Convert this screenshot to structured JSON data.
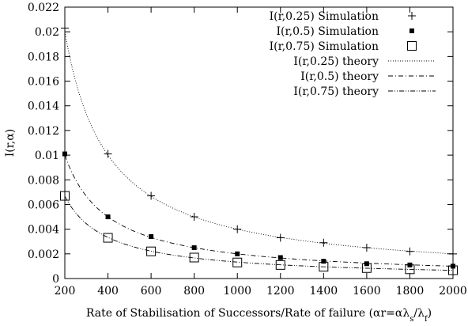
{
  "chart_data": {
    "type": "line",
    "xlabel_main": "Rate of Stabilisation of Successors/Rate of failure (αr=αλ",
    "xlabel_sub1": "s",
    "xlabel_mid": "/λ",
    "xlabel_sub2": "f",
    "xlabel_end": ")",
    "ylabel": "I(r,α)",
    "xlim": [
      200,
      2000
    ],
    "ylim": [
      0,
      0.022
    ],
    "xticks": [
      200,
      400,
      600,
      800,
      1000,
      1200,
      1400,
      1600,
      1800,
      2000
    ],
    "yticks": [
      0,
      0.002,
      0.004,
      0.006,
      0.008,
      0.01,
      0.012,
      0.014,
      0.016,
      0.018,
      0.02,
      0.022
    ],
    "legend_position": "top-right",
    "series": [
      {
        "name": "I(r,0.25) Simulation",
        "kind": "points",
        "marker": "plus",
        "x": [
          200,
          400,
          600,
          800,
          1000,
          1200,
          1400,
          1600,
          1800,
          2000
        ],
        "y": [
          0.0203,
          0.0101,
          0.0067,
          0.005,
          0.004,
          0.0033,
          0.0029,
          0.0025,
          0.0022,
          0.002
        ]
      },
      {
        "name": "I(r,0.5) Simulation",
        "kind": "points",
        "marker": "filled-square",
        "x": [
          200,
          400,
          600,
          800,
          1000,
          1200,
          1400,
          1600,
          1800,
          2000
        ],
        "y": [
          0.0101,
          0.005,
          0.0034,
          0.0025,
          0.002,
          0.0017,
          0.0014,
          0.0012,
          0.0011,
          0.001
        ]
      },
      {
        "name": "I(r,0.75) Simulation",
        "kind": "points",
        "marker": "open-square",
        "x": [
          200,
          400,
          600,
          800,
          1000,
          1200,
          1400,
          1600,
          1800,
          2000
        ],
        "y": [
          0.0067,
          0.0033,
          0.0022,
          0.0017,
          0.0013,
          0.0011,
          0.00095,
          0.00085,
          0.00075,
          0.00067
        ]
      },
      {
        "name": "I(r,0.25) theory",
        "kind": "curve",
        "dash": "dotted",
        "coefficient": 4.0,
        "x_start": 200,
        "x_end": 2000
      },
      {
        "name": "I(r,0.5) theory",
        "kind": "curve",
        "dash": "dash-dot",
        "coefficient": 2.0,
        "x_start": 200,
        "x_end": 2000
      },
      {
        "name": "I(r,0.75) theory",
        "kind": "curve",
        "dash": "dash-dot-dot",
        "coefficient": 1.333,
        "x_start": 200,
        "x_end": 2000
      }
    ]
  }
}
